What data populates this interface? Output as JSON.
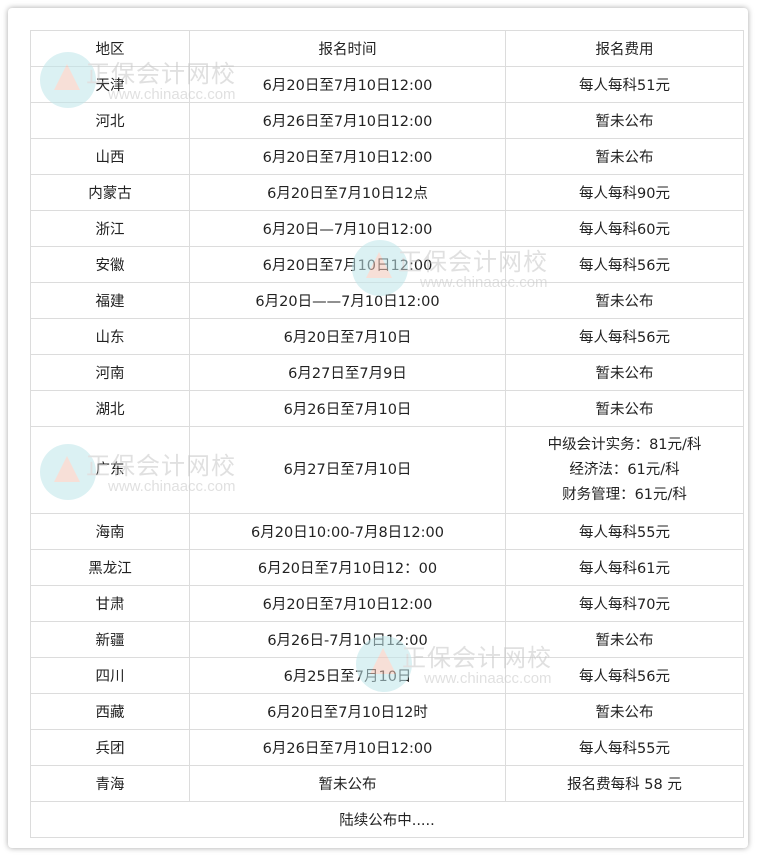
{
  "header": [
    "地区",
    "报名时间",
    "报名费用"
  ],
  "rows": [
    [
      "天津",
      "6月20日至7月10日12:00",
      "每人每科51元"
    ],
    [
      "河北",
      "6月26日至7月10日12:00",
      "暂未公布"
    ],
    [
      "山西",
      "6月20日至7月10日12:00",
      "暂未公布"
    ],
    [
      "内蒙古",
      "6月20日至7月10日12点",
      "每人每科90元"
    ],
    [
      "浙江",
      "6月20日—7月10日12:00",
      "每人每科60元"
    ],
    [
      "安徽",
      "6月20日至7月10日12:00",
      "每人每科56元"
    ],
    [
      "福建",
      "6月20日——7月10日12:00",
      "暂未公布"
    ],
    [
      "山东",
      "6月20日至7月10日",
      "每人每科56元"
    ],
    [
      "河南",
      "6月27日至7月9日",
      "暂未公布"
    ],
    [
      "湖北",
      "6月26日至7月10日",
      "暂未公布"
    ]
  ],
  "guangdong": {
    "region": "广东",
    "time": "6月27日至7月10日",
    "fees": [
      "中级会计实务：81元/科",
      "经济法：61元/科",
      "财务管理：61元/科"
    ]
  },
  "rows2": [
    [
      "海南",
      "6月20日10:00-7月8日12:00",
      "每人每科55元"
    ],
    [
      "黑龙江",
      "6月20日至7月10日12：00",
      "每人每科61元"
    ],
    [
      "甘肃",
      "6月20日至7月10日12:00",
      "每人每科70元"
    ],
    [
      "新疆",
      "6月26日-7月10日12:00",
      "暂未公布"
    ],
    [
      "四川",
      "6月25日至7月10日",
      "每人每科56元"
    ],
    [
      "西藏",
      "6月20日至7月10日12时",
      "暂未公布"
    ],
    [
      "兵团",
      "6月26日至7月10日12:00",
      "每人每科55元"
    ],
    [
      "青海",
      "暂未公布",
      "报名费每科 58 元"
    ]
  ],
  "footer": "陆续公布中.....",
  "watermark": {
    "name": "正保会计网校",
    "url": "www.chinaacc.com"
  }
}
